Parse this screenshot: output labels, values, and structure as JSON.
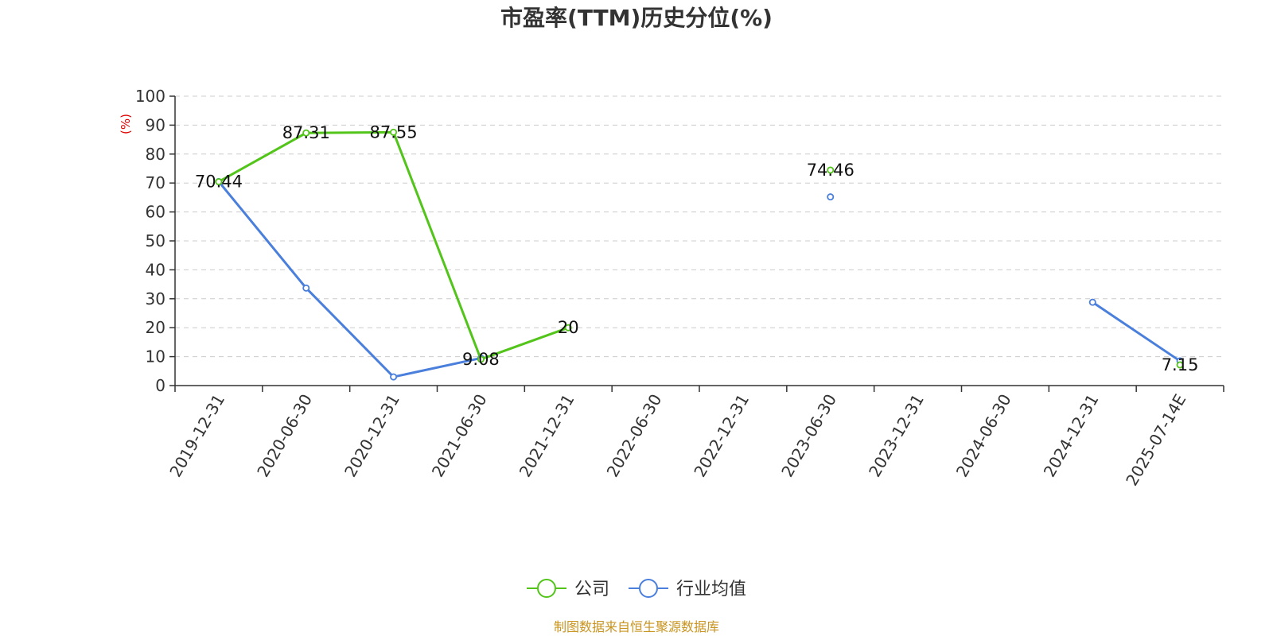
{
  "chart_data": {
    "type": "line",
    "title": "市盈率(TTM)历史分位(%)",
    "ylabel": "(%)",
    "ylim": [
      0,
      100
    ],
    "yticks": [
      0,
      10,
      20,
      30,
      40,
      50,
      60,
      70,
      80,
      90,
      100
    ],
    "categories": [
      "2019-12-31",
      "2020-06-30",
      "2020-12-31",
      "2021-06-30",
      "2021-12-31",
      "2022-06-30",
      "2022-12-31",
      "2023-06-30",
      "2023-12-31",
      "2024-06-30",
      "2024-12-31",
      "2025-07-14E"
    ],
    "grid": true,
    "legend_position": "bottom",
    "series": [
      {
        "name": "公司",
        "color": "#52c41a",
        "values": [
          70.44,
          87.31,
          87.55,
          9.08,
          20,
          null,
          null,
          74.46,
          null,
          null,
          null,
          7.15
        ],
        "labels": [
          "70.44",
          "87.31",
          "87.55",
          "9.08",
          "20",
          null,
          null,
          "74.46",
          null,
          null,
          null,
          "7.15"
        ]
      },
      {
        "name": "行业均值",
        "color": "#4a7fdc",
        "values": [
          70.5,
          33.7,
          3.0,
          9.5,
          null,
          null,
          null,
          65.2,
          null,
          null,
          28.8,
          8.5
        ],
        "labels": [
          null,
          null,
          null,
          null,
          null,
          null,
          null,
          null,
          null,
          null,
          null,
          null
        ]
      }
    ],
    "source": "制图数据来自恒生聚源数据库"
  }
}
